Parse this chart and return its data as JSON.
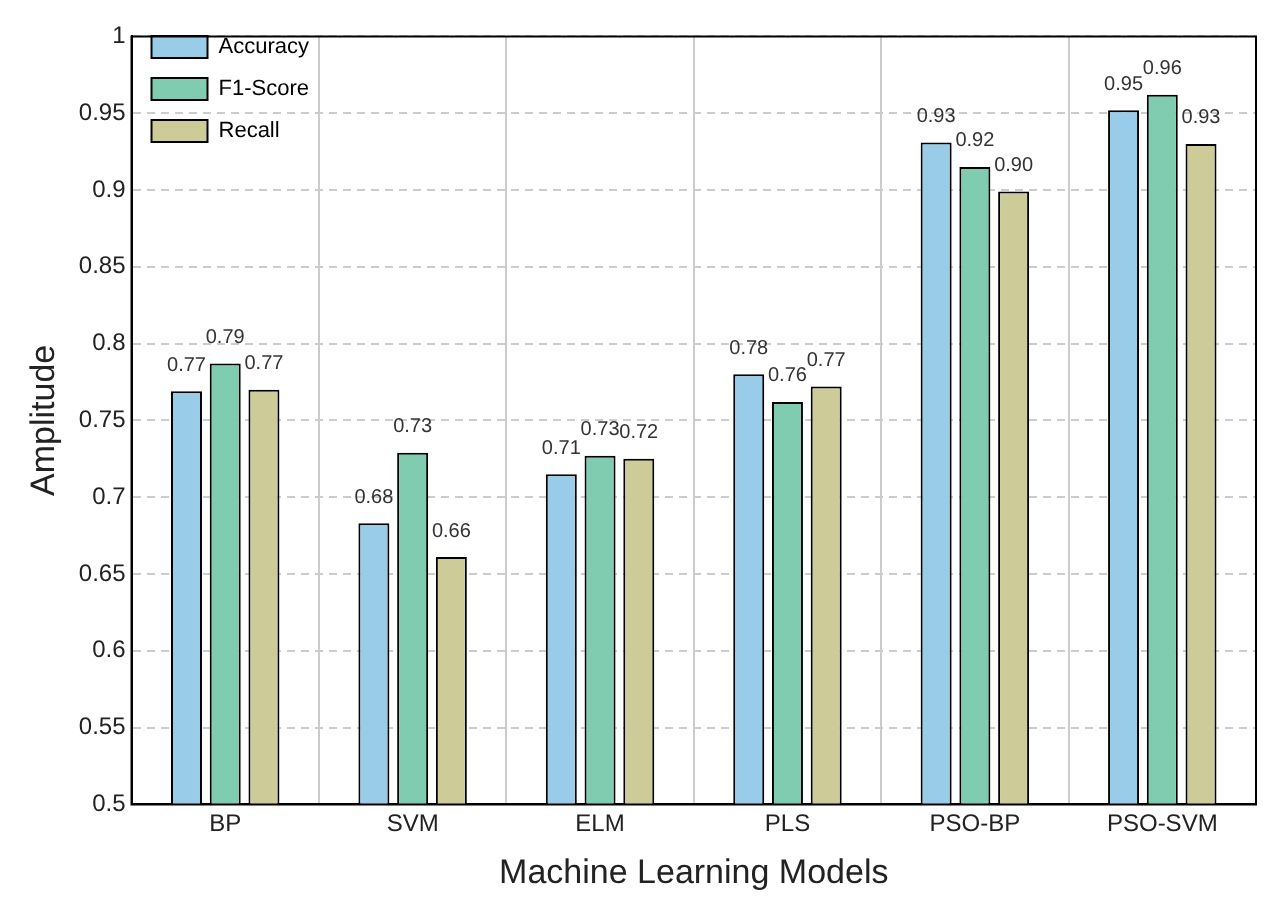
{
  "chart_data": {
    "type": "bar",
    "xlabel": "Machine Learning Models",
    "ylabel": "Amplitude",
    "categories": [
      "BP",
      "SVM",
      "ELM",
      "PLS",
      "PSO-BP",
      "PSO-SVM"
    ],
    "series": [
      {
        "name": "Accuracy",
        "color": "#99cce8",
        "values": [
          0.769,
          0.683,
          0.715,
          0.78,
          0.931,
          0.952
        ],
        "value_labels": [
          "0.77",
          "0.68",
          "0.71",
          "0.78",
          "0.93",
          "0.95"
        ]
      },
      {
        "name": "F1-Score",
        "color": "#80ccb0",
        "values": [
          0.787,
          0.729,
          0.727,
          0.762,
          0.915,
          0.962
        ],
        "value_labels": [
          "0.79",
          "0.73",
          "0.73",
          "0.76",
          "0.92",
          "0.96"
        ]
      },
      {
        "name": "Recall",
        "color": "#cdcb98",
        "values": [
          0.77,
          0.661,
          0.725,
          0.772,
          0.899,
          0.93
        ],
        "value_labels": [
          "0.77",
          "0.66",
          "0.72",
          "0.77",
          "0.90",
          "0.93"
        ]
      }
    ],
    "ylim": [
      0.5,
      1
    ],
    "yticks": [
      0.5,
      0.55,
      0.6,
      0.65,
      0.7,
      0.75,
      0.8,
      0.85,
      0.9,
      0.95,
      1
    ],
    "grid": true,
    "legend": "top left"
  }
}
